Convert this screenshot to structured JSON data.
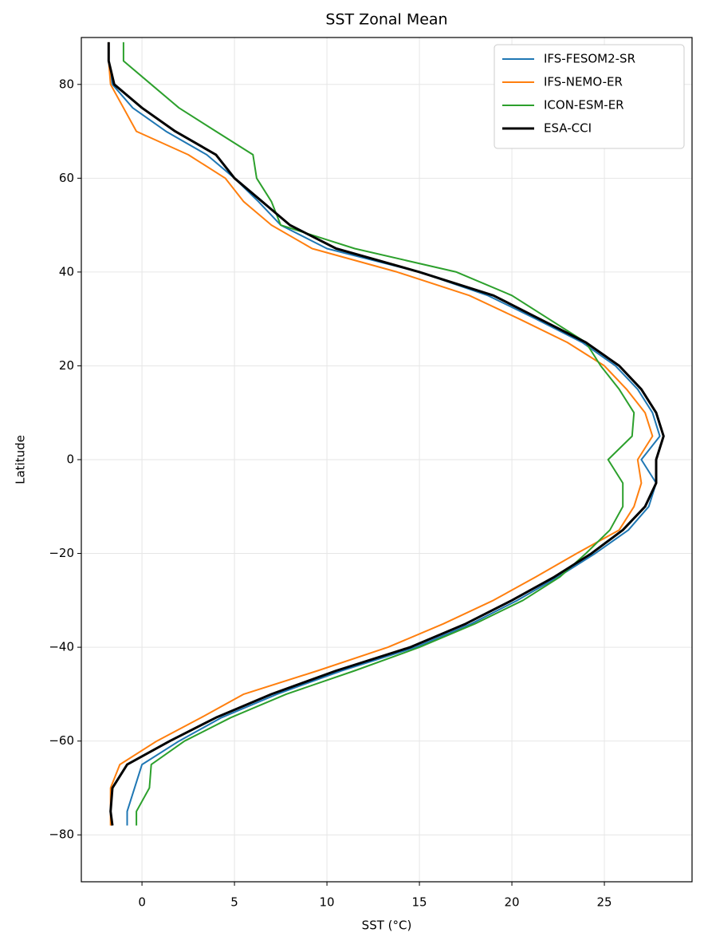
{
  "chart_data": {
    "type": "line",
    "title": "SST Zonal Mean",
    "x_label": "SST (°C)",
    "y_label": "Latitude",
    "y": [
      -78,
      -75,
      -70,
      -65,
      -60,
      -55,
      -50,
      -45,
      -40,
      -35,
      -30,
      -25,
      -20,
      -15,
      -10,
      -5,
      0,
      5,
      10,
      15,
      20,
      25,
      30,
      35,
      40,
      45,
      50,
      55,
      60,
      65,
      70,
      75,
      80,
      85,
      89
    ],
    "series": [
      {
        "name": "IFS-FESOM2-SR",
        "color": "#1f77b4",
        "width": 2,
        "values": [
          -0.8,
          -0.8,
          -0.4,
          0,
          2,
          4.3,
          7.3,
          10.8,
          14.8,
          17.8,
          20.3,
          22.5,
          24.5,
          26.3,
          27.4,
          27.8,
          27,
          28,
          27.6,
          26.8,
          25.6,
          23.8,
          21.3,
          18.7,
          15,
          10,
          7.5,
          6.3,
          5,
          3.5,
          1.3,
          -0.5,
          -1.6,
          -1.8,
          -1.8
        ]
      },
      {
        "name": "IFS-NEMO-ER",
        "color": "#ff7f0e",
        "width": 2,
        "values": [
          -1.7,
          -1.7,
          -1.7,
          -1.2,
          0.8,
          3.2,
          5.5,
          9.5,
          13.3,
          16.3,
          19,
          21.3,
          23.5,
          25.8,
          26.6,
          27,
          26.8,
          27.6,
          27.2,
          26.2,
          25,
          23,
          20.4,
          17.7,
          13.8,
          9.2,
          7,
          5.5,
          4.5,
          2.5,
          -0.3,
          -1,
          -1.7,
          -1.8,
          -1.8
        ]
      },
      {
        "name": "ICON-ESM-ER",
        "color": "#2ca02c",
        "width": 2,
        "values": [
          -0.3,
          -0.3,
          0.4,
          0.5,
          2.3,
          4.8,
          7.8,
          11.5,
          15,
          18,
          20.6,
          22.6,
          24,
          25.3,
          26,
          26,
          25.2,
          26.5,
          26.6,
          25.8,
          24.8,
          24,
          22,
          20,
          17,
          11.5,
          7.5,
          7,
          6.2,
          6,
          4,
          2,
          0.5,
          -1,
          -1
        ]
      },
      {
        "name": "ESA-CCI",
        "color": "#000000",
        "width": 3,
        "values": [
          -1.6,
          -1.7,
          -1.6,
          -0.8,
          1.5,
          4,
          7,
          10.5,
          14.5,
          17.5,
          20,
          22.3,
          24.3,
          26,
          27.2,
          27.8,
          27.8,
          28.2,
          27.8,
          27,
          25.8,
          24,
          21.5,
          19,
          15,
          10.5,
          8,
          6.5,
          5,
          4,
          1.8,
          0,
          -1.5,
          -1.8,
          -1.8
        ]
      }
    ],
    "xlim": [
      -3.28,
      29.74
    ],
    "xticks": [
      0,
      5,
      10,
      15,
      20,
      25
    ],
    "ylim": [
      -90,
      90
    ],
    "yticks": [
      {
        "value": -80,
        "label": "−80"
      },
      {
        "value": -60,
        "label": "−60"
      },
      {
        "value": -40,
        "label": "−40"
      },
      {
        "value": -20,
        "label": "−20"
      },
      0,
      20,
      40,
      60,
      80
    ],
    "grid": true,
    "legend": "upper right"
  }
}
